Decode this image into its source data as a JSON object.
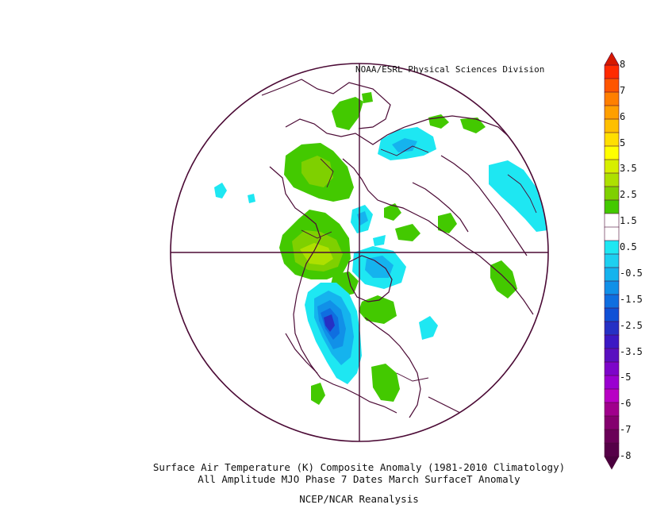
{
  "header": {
    "credit": "NOAA/ESRL Physical Sciences Division"
  },
  "footer": {
    "line1": "Surface Air Temperature (K) Composite Anomaly (1981-2010 Climatology)",
    "line2": "All Amplitude MJO Phase 7 Dates March SurfaceT Anomaly",
    "line3": "NCEP/NCAR Reanalysis"
  },
  "colorbar": {
    "labels": [
      "8",
      "7",
      "6",
      "5",
      "3.5",
      "2.5",
      "1.5",
      "0.5",
      "-0.5",
      "-1.5",
      "-2.5",
      "-3.5",
      "-5",
      "-6",
      "-7",
      "-8"
    ],
    "colors": [
      "#ff2a00",
      "#ff5500",
      "#ff7f00",
      "#ff9f00",
      "#ffbf00",
      "#ffdf00",
      "#ffff00",
      "#d7ef00",
      "#aee000",
      "#7fd000",
      "#43c900",
      "#ffffff",
      "#ffffff",
      "#1ee7f2",
      "#1dd0f0",
      "#15b3ee",
      "#1190e8",
      "#0f6ee0",
      "#1050d6",
      "#2630c4",
      "#3c18c4",
      "#5a0fc0",
      "#7d05c9",
      "#9a00d0",
      "#b800c4",
      "#a0008c",
      "#84006e",
      "#6a0058",
      "#560048"
    ],
    "arrow_top_color": "#d61800",
    "arrow_bottom_color": "#4a003e"
  },
  "map": {
    "projection": "north-polar-stereographic",
    "border_color": "#4b0a35",
    "anomaly_colors": {
      "green": "#43c900",
      "light_green": "#7fd000",
      "yellow_green": "#aee000",
      "yellow": "#d7ef00",
      "cyan": "#1ee7f2",
      "light_blue": "#15b3ee",
      "blue": "#1190e8",
      "dark_blue": "#0f6ee0",
      "deep_blue": "#2630c4"
    }
  }
}
